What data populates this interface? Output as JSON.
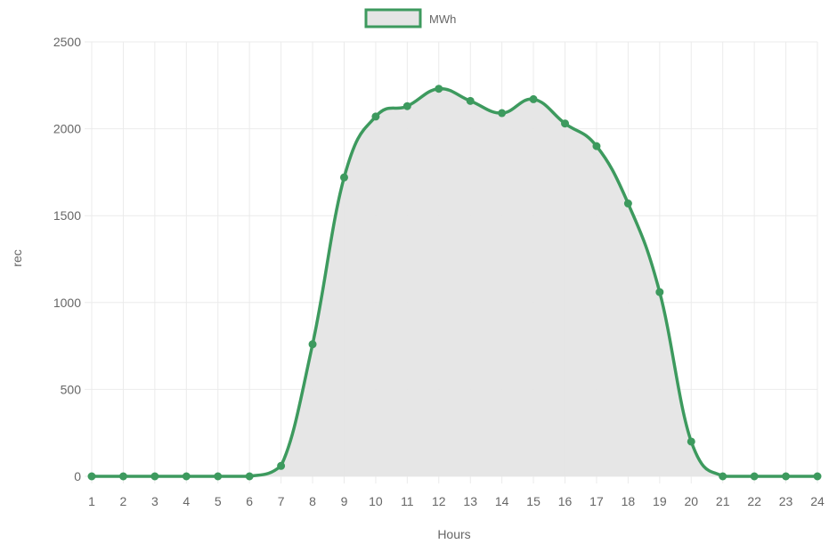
{
  "chart_data": {
    "type": "area",
    "legend": {
      "position": "top-center",
      "label": "MWh"
    },
    "xlabel": "Hours",
    "ylabel": "rec",
    "x": [
      1,
      2,
      3,
      4,
      5,
      6,
      7,
      8,
      9,
      10,
      11,
      12,
      13,
      14,
      15,
      16,
      17,
      18,
      19,
      20,
      21,
      22,
      23,
      24
    ],
    "x_tick_labels": [
      "1",
      "2",
      "3",
      "4",
      "5",
      "6",
      "7",
      "8",
      "9",
      "10",
      "11",
      "12",
      "13",
      "14",
      "15",
      "16",
      "17",
      "18",
      "19",
      "20",
      "21",
      "22",
      "23",
      "24"
    ],
    "series": [
      {
        "name": "MWh",
        "values": [
          0,
          0,
          0,
          0,
          0,
          0,
          60,
          760,
          1720,
          2070,
          2130,
          2230,
          2160,
          2090,
          2170,
          2030,
          1900,
          1570,
          1060,
          200,
          0,
          0,
          0,
          0
        ],
        "line_color": "#3d9a5e",
        "fill_color": "#e5e5e5"
      }
    ],
    "ylim": [
      0,
      2500
    ],
    "y_ticks": [
      0,
      500,
      1000,
      1500,
      2000,
      2500
    ],
    "y_tick_labels": [
      "0",
      "500",
      "1000",
      "1500",
      "2000",
      "2500"
    ],
    "grid": true,
    "grid_color": "#ebebeb"
  }
}
